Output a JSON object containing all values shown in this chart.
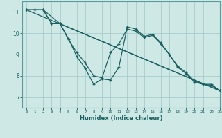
{
  "xlabel": "Humidex (Indice chaleur)",
  "bg_color": "#cde8e5",
  "grid_color": "#a8ccca",
  "line_color": "#1a6060",
  "spine_color": "#5a9a9a",
  "xlim": [
    -0.5,
    23
  ],
  "ylim": [
    6.5,
    11.5
  ],
  "yticks": [
    7,
    8,
    9,
    10,
    11
  ],
  "xticks": [
    0,
    1,
    2,
    3,
    4,
    5,
    6,
    7,
    8,
    9,
    10,
    11,
    12,
    13,
    14,
    15,
    16,
    17,
    18,
    19,
    20,
    21,
    22,
    23
  ],
  "series": [
    {
      "x": [
        0,
        1,
        2,
        3,
        4,
        5,
        6,
        7,
        8,
        9,
        10,
        11,
        12,
        13,
        14,
        15,
        16,
        17,
        18,
        19,
        20,
        21,
        22,
        23
      ],
      "y": [
        11.1,
        11.1,
        11.1,
        10.45,
        10.45,
        9.75,
        8.9,
        8.35,
        7.6,
        7.85,
        7.8,
        8.4,
        10.3,
        10.2,
        9.85,
        9.95,
        9.55,
        9.0,
        8.45,
        8.15,
        7.75,
        7.6,
        7.6,
        7.3
      ],
      "marker": true
    },
    {
      "x": [
        0,
        1,
        2,
        3,
        4,
        5,
        6,
        7,
        8,
        9,
        10,
        11,
        12,
        13,
        14,
        15,
        16,
        17,
        18,
        19,
        20,
        21,
        22,
        23
      ],
      "y": [
        11.1,
        11.1,
        11.1,
        10.45,
        10.45,
        9.7,
        9.1,
        8.6,
        8.0,
        7.9,
        9.1,
        9.5,
        10.2,
        10.1,
        9.8,
        9.9,
        9.5,
        9.0,
        8.4,
        8.1,
        7.7,
        7.6,
        7.55,
        7.3
      ],
      "marker": true
    },
    {
      "x": [
        0,
        2,
        4,
        23
      ],
      "y": [
        11.1,
        11.1,
        10.45,
        7.3
      ],
      "marker": false
    },
    {
      "x": [
        0,
        23
      ],
      "y": [
        11.1,
        7.3
      ],
      "marker": false
    }
  ]
}
